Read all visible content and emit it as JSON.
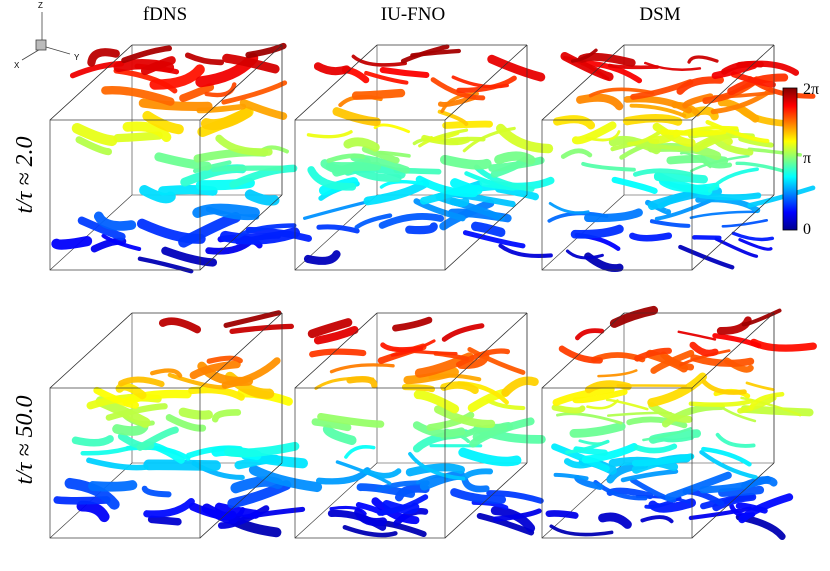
{
  "column_titles": [
    "fDNS",
    "IU-FNO",
    "DSM"
  ],
  "row_labels": [
    "t/τ ≈ 2.0",
    "t/τ ≈ 50.0"
  ],
  "colorbar": {
    "ticks": [
      "2π",
      "π",
      "0"
    ]
  },
  "axes_triad": {
    "z": "Z",
    "x": "X",
    "y": "Y"
  }
}
